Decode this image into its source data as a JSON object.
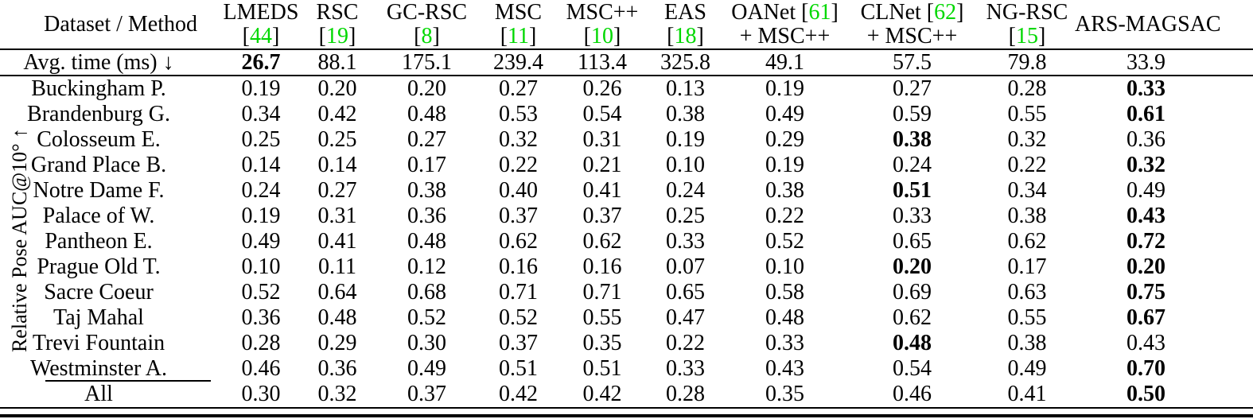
{
  "colors": {
    "citation_green": "#00d800",
    "text": "#000000",
    "background": "#ffffff"
  },
  "table": {
    "corner_header": "Dataset / Method",
    "axis_label": "Relative Pose AUC@10° ↑",
    "methods": [
      {
        "name": "LMEDS",
        "cite": "44",
        "cite_pos": "line2"
      },
      {
        "name": "RSC",
        "cite": "19",
        "cite_pos": "line2"
      },
      {
        "name": "GC-RSC",
        "cite": "8",
        "cite_pos": "line2"
      },
      {
        "name": "MSC",
        "cite": "11",
        "cite_pos": "line2"
      },
      {
        "name": "MSC++",
        "cite": "10",
        "cite_pos": "line2"
      },
      {
        "name": "EAS",
        "cite": "18",
        "cite_pos": "line2"
      },
      {
        "name": "OANet",
        "cite": "61",
        "cite_pos": "line1",
        "line2": "+ MSC++"
      },
      {
        "name": "CLNet",
        "cite": "62",
        "cite_pos": "line1",
        "line2": "+ MSC++"
      },
      {
        "name": "NG-RSC",
        "cite": "15",
        "cite_pos": "line2"
      },
      {
        "name": "ARS-MAGSAC"
      }
    ],
    "avg_time_row": {
      "label": "Avg. time (ms) ↓",
      "values": [
        "26.7",
        "88.1",
        "175.1",
        "239.4",
        "113.4",
        "325.8",
        "49.1",
        "57.5",
        "79.8",
        "33.9"
      ],
      "bold_cols": [
        0
      ]
    },
    "rows": [
      {
        "dataset": "Buckingham P.",
        "values": [
          "0.19",
          "0.20",
          "0.20",
          "0.27",
          "0.26",
          "0.13",
          "0.19",
          "0.27",
          "0.28",
          "0.33"
        ],
        "bold_cols": [
          9
        ]
      },
      {
        "dataset": "Brandenburg G.",
        "values": [
          "0.34",
          "0.42",
          "0.48",
          "0.53",
          "0.54",
          "0.38",
          "0.49",
          "0.59",
          "0.55",
          "0.61"
        ],
        "bold_cols": [
          9
        ]
      },
      {
        "dataset": "Colosseum E.",
        "values": [
          "0.25",
          "0.25",
          "0.27",
          "0.32",
          "0.31",
          "0.19",
          "0.29",
          "0.38",
          "0.32",
          "0.36"
        ],
        "bold_cols": [
          7
        ]
      },
      {
        "dataset": "Grand Place B.",
        "values": [
          "0.14",
          "0.14",
          "0.17",
          "0.22",
          "0.21",
          "0.10",
          "0.19",
          "0.24",
          "0.22",
          "0.32"
        ],
        "bold_cols": [
          9
        ]
      },
      {
        "dataset": "Notre Dame F.",
        "values": [
          "0.24",
          "0.27",
          "0.38",
          "0.40",
          "0.41",
          "0.24",
          "0.38",
          "0.51",
          "0.34",
          "0.49"
        ],
        "bold_cols": [
          7
        ]
      },
      {
        "dataset": "Palace of W.",
        "values": [
          "0.19",
          "0.31",
          "0.36",
          "0.37",
          "0.37",
          "0.25",
          "0.22",
          "0.33",
          "0.38",
          "0.43"
        ],
        "bold_cols": [
          9
        ]
      },
      {
        "dataset": "Pantheon E.",
        "values": [
          "0.49",
          "0.41",
          "0.48",
          "0.62",
          "0.62",
          "0.33",
          "0.52",
          "0.65",
          "0.62",
          "0.72"
        ],
        "bold_cols": [
          9
        ]
      },
      {
        "dataset": "Prague Old T.",
        "values": [
          "0.10",
          "0.11",
          "0.12",
          "0.16",
          "0.16",
          "0.07",
          "0.10",
          "0.20",
          "0.17",
          "0.20"
        ],
        "bold_cols": [
          7,
          9
        ]
      },
      {
        "dataset": "Sacre Coeur",
        "values": [
          "0.52",
          "0.64",
          "0.68",
          "0.71",
          "0.71",
          "0.65",
          "0.58",
          "0.69",
          "0.63",
          "0.75"
        ],
        "bold_cols": [
          9
        ]
      },
      {
        "dataset": "Taj Mahal",
        "values": [
          "0.36",
          "0.48",
          "0.52",
          "0.52",
          "0.55",
          "0.47",
          "0.48",
          "0.62",
          "0.55",
          "0.67"
        ],
        "bold_cols": [
          9
        ]
      },
      {
        "dataset": "Trevi Fountain",
        "values": [
          "0.28",
          "0.29",
          "0.30",
          "0.37",
          "0.35",
          "0.22",
          "0.33",
          "0.48",
          "0.38",
          "0.43"
        ],
        "bold_cols": [
          7
        ]
      },
      {
        "dataset": "Westminster A.",
        "values": [
          "0.46",
          "0.36",
          "0.49",
          "0.51",
          "0.51",
          "0.33",
          "0.43",
          "0.54",
          "0.49",
          "0.70"
        ],
        "bold_cols": [
          9
        ]
      },
      {
        "dataset": "All",
        "values": [
          "0.30",
          "0.32",
          "0.37",
          "0.42",
          "0.42",
          "0.28",
          "0.35",
          "0.46",
          "0.41",
          "0.50"
        ],
        "bold_cols": [
          9
        ]
      }
    ]
  }
}
